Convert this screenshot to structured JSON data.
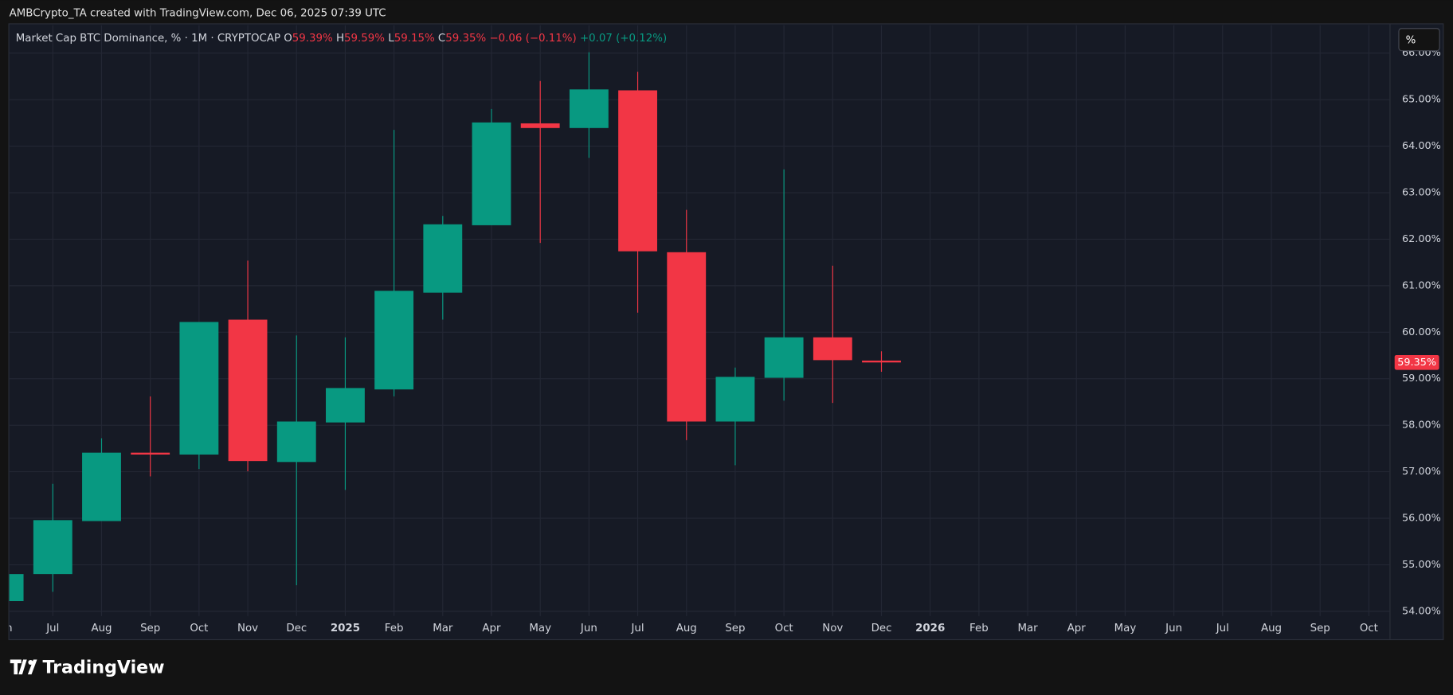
{
  "header": {
    "credit": "AMBCrypto_TA created with TradingView.com, Dec 06, 2025 07:39 UTC",
    "symbol": "Market Cap BTC Dominance, % · 1M · CRYPTOCAP",
    "o_label": "O",
    "o_value": "59.39%",
    "h_label": "H",
    "h_value": "59.59%",
    "l_label": "L",
    "l_value": "59.15%",
    "c_label": "C",
    "c_value": "59.35%",
    "change": "−0.06 (−0.11%)",
    "extra": "+0.07 (+0.12%)",
    "scale_button": "%"
  },
  "footer": {
    "logo": "TradingView"
  },
  "chart_data": {
    "type": "candlestick",
    "categories": [
      "Jun",
      "Jul",
      "Aug",
      "Sep",
      "Oct",
      "Nov",
      "Dec",
      "2025",
      "Feb",
      "Mar",
      "Apr",
      "May",
      "Jun",
      "Jul",
      "Aug",
      "Sep",
      "Oct",
      "Nov",
      "Dec",
      "2026",
      "Feb",
      "Mar",
      "Apr",
      "May",
      "Jun",
      "Jul",
      "Aug",
      "Sep",
      "Oct"
    ],
    "open": [
      54.22,
      54.8,
      55.94,
      57.41,
      57.37,
      60.27,
      57.21,
      58.06,
      58.77,
      60.85,
      62.3,
      64.49,
      64.39,
      65.2,
      61.72,
      58.08,
      59.02,
      59.89,
      59.39,
      null,
      null,
      null,
      null,
      null,
      null,
      null,
      null,
      null,
      null
    ],
    "high": [
      54.85,
      56.74,
      57.72,
      58.62,
      60.22,
      61.54,
      59.93,
      59.89,
      64.35,
      62.5,
      64.8,
      65.4,
      66.02,
      65.6,
      62.63,
      59.24,
      63.5,
      61.43,
      59.59,
      null,
      null,
      null,
      null,
      null,
      null,
      null,
      null,
      null,
      null
    ],
    "low": [
      54.2,
      54.42,
      55.96,
      56.9,
      57.06,
      57.01,
      54.56,
      56.61,
      58.62,
      60.27,
      62.3,
      61.92,
      63.75,
      60.42,
      57.68,
      57.14,
      58.53,
      58.48,
      59.15,
      null,
      null,
      null,
      null,
      null,
      null,
      null,
      null,
      null,
      null
    ],
    "close": [
      54.8,
      55.96,
      57.41,
      57.37,
      60.22,
      57.23,
      58.08,
      58.8,
      60.89,
      62.32,
      64.51,
      64.39,
      65.22,
      61.74,
      58.08,
      59.04,
      59.89,
      59.4,
      59.35,
      null,
      null,
      null,
      null,
      null,
      null,
      null,
      null,
      null,
      null
    ],
    "up_color": "#089981",
    "down_color": "#f23645",
    "last_price": 59.35,
    "last_price_label": "59.35%",
    "ylim": [
      53.4,
      66.6
    ],
    "yticks": [
      {
        "value": 54,
        "label": "54.00%"
      },
      {
        "value": 55,
        "label": "55.00%"
      },
      {
        "value": 56,
        "label": "56.00%"
      },
      {
        "value": 57,
        "label": "57.00%"
      },
      {
        "value": 58,
        "label": "58.00%"
      },
      {
        "value": 59,
        "label": "59.00%"
      },
      {
        "value": 60,
        "label": "60.00%"
      },
      {
        "value": 61,
        "label": "61.00%"
      },
      {
        "value": 62,
        "label": "62.00%"
      },
      {
        "value": 63,
        "label": "63.00%"
      },
      {
        "value": 64,
        "label": "64.00%"
      },
      {
        "value": 65,
        "label": "65.00%"
      },
      {
        "value": 66,
        "label": "66.00%"
      }
    ],
    "grid": true
  }
}
